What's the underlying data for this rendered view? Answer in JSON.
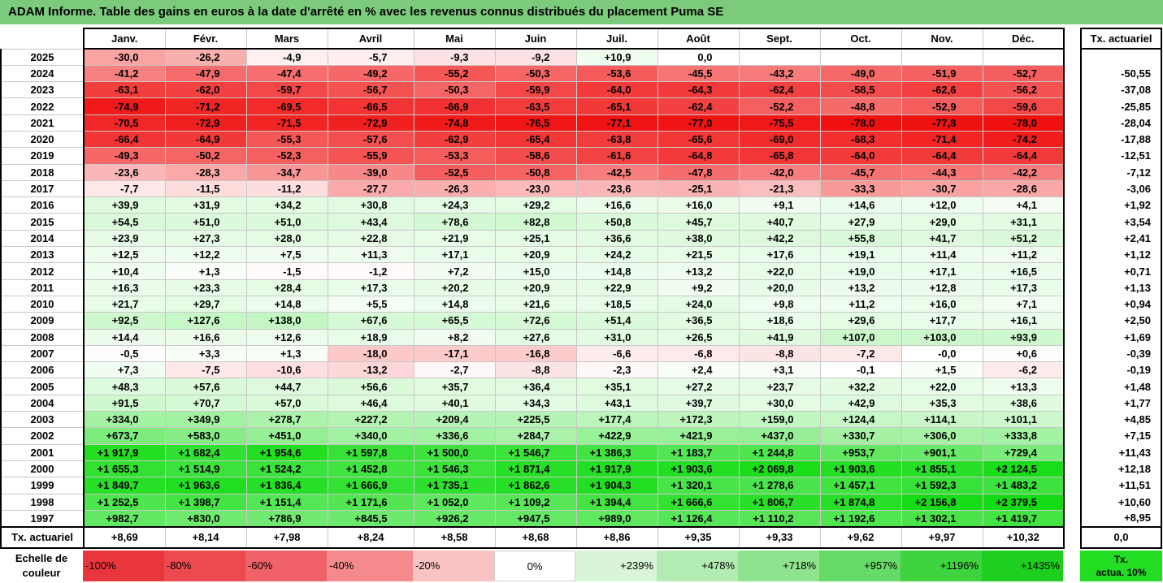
{
  "title": "ADAM Informe. Table des gains en euros à la date d'arrêté en % avec les revenus connus distribués du placement Puma SE",
  "months": [
    "Janv.",
    "Févr.",
    "Mars",
    "Avril",
    "Mai",
    "Juin",
    "Juil.",
    "Août",
    "Sept.",
    "Oct.",
    "Nov.",
    "Déc."
  ],
  "rate_header": "Tx. actuariel",
  "rows": [
    {
      "year": "2025",
      "values": [
        "-30,0",
        "-26,2",
        "-4,9",
        "-5,7",
        "-9,3",
        "-9,2",
        "+10,9",
        "0,0",
        "",
        "",
        "",
        ""
      ],
      "rate": ""
    },
    {
      "year": "2024",
      "values": [
        "-41,2",
        "-47,9",
        "-47,4",
        "-49,2",
        "-55,2",
        "-50,3",
        "-53,6",
        "-45,5",
        "-43,2",
        "-49,0",
        "-51,9",
        "-52,7"
      ],
      "rate": "-50,55"
    },
    {
      "year": "2023",
      "values": [
        "-63,1",
        "-62,0",
        "-59,7",
        "-56,7",
        "-50,3",
        "-59,9",
        "-64,0",
        "-64,3",
        "-62,4",
        "-58,5",
        "-62,6",
        "-56,2"
      ],
      "rate": "-37,08"
    },
    {
      "year": "2022",
      "values": [
        "-74,9",
        "-71,2",
        "-69,5",
        "-66,5",
        "-66,9",
        "-63,5",
        "-65,1",
        "-62,4",
        "-52,2",
        "-48,8",
        "-52,9",
        "-59,6"
      ],
      "rate": "-25,85"
    },
    {
      "year": "2021",
      "values": [
        "-70,5",
        "-72,9",
        "-71,5",
        "-72,9",
        "-74,8",
        "-76,5",
        "-77,1",
        "-77,0",
        "-75,5",
        "-78,0",
        "-77,8",
        "-78,0"
      ],
      "rate": "-28,04"
    },
    {
      "year": "2020",
      "values": [
        "-66,4",
        "-64,9",
        "-55,3",
        "-57,6",
        "-62,9",
        "-65,4",
        "-63,8",
        "-65,6",
        "-69,0",
        "-68,3",
        "-71,4",
        "-74,2"
      ],
      "rate": "-17,88"
    },
    {
      "year": "2019",
      "values": [
        "-49,3",
        "-50,2",
        "-52,3",
        "-55,9",
        "-53,3",
        "-58,6",
        "-61,6",
        "-64,8",
        "-65,8",
        "-64,0",
        "-64,4",
        "-64,4"
      ],
      "rate": "-12,51"
    },
    {
      "year": "2018",
      "values": [
        "-23,6",
        "-28,3",
        "-34,7",
        "-39,0",
        "-52,5",
        "-50,8",
        "-42,5",
        "-47,8",
        "-42,0",
        "-45,7",
        "-44,3",
        "-42,2"
      ],
      "rate": "-7,12"
    },
    {
      "year": "2017",
      "values": [
        "-7,7",
        "-11,5",
        "-11,2",
        "-27,7",
        "-26,3",
        "-23,0",
        "-23,6",
        "-25,1",
        "-21,3",
        "-33,3",
        "-30,7",
        "-28,6"
      ],
      "rate": "-3,06"
    },
    {
      "year": "2016",
      "values": [
        "+39,9",
        "+31,9",
        "+34,2",
        "+30,8",
        "+24,3",
        "+29,2",
        "+16,6",
        "+16,0",
        "+9,1",
        "+14,6",
        "+12,0",
        "+4,1"
      ],
      "rate": "+1,92"
    },
    {
      "year": "2015",
      "values": [
        "+54,5",
        "+51,0",
        "+51,0",
        "+43,4",
        "+78,6",
        "+82,8",
        "+50,8",
        "+45,7",
        "+40,7",
        "+27,9",
        "+29,0",
        "+31,1"
      ],
      "rate": "+3,54"
    },
    {
      "year": "2014",
      "values": [
        "+23,9",
        "+27,3",
        "+28,0",
        "+22,8",
        "+21,9",
        "+25,1",
        "+36,6",
        "+38,0",
        "+42,2",
        "+55,8",
        "+41,7",
        "+51,2"
      ],
      "rate": "+2,41"
    },
    {
      "year": "2013",
      "values": [
        "+12,5",
        "+12,2",
        "+7,5",
        "+11,3",
        "+17,1",
        "+20,9",
        "+24,2",
        "+21,5",
        "+17,6",
        "+19,1",
        "+11,4",
        "+11,2"
      ],
      "rate": "+1,12"
    },
    {
      "year": "2012",
      "values": [
        "+10,4",
        "+1,3",
        "-1,5",
        "-1,2",
        "+7,2",
        "+15,0",
        "+14,8",
        "+13,2",
        "+22,0",
        "+19,0",
        "+17,1",
        "+16,5"
      ],
      "rate": "+0,71"
    },
    {
      "year": "2011",
      "values": [
        "+16,3",
        "+23,3",
        "+28,4",
        "+17,3",
        "+20,2",
        "+20,9",
        "+22,9",
        "+9,2",
        "+20,0",
        "+13,2",
        "+12,8",
        "+17,3"
      ],
      "rate": "+1,13"
    },
    {
      "year": "2010",
      "values": [
        "+21,7",
        "+29,7",
        "+14,8",
        "+5,5",
        "+14,8",
        "+21,6",
        "+18,5",
        "+24,0",
        "+9,8",
        "+11,2",
        "+16,0",
        "+7,1"
      ],
      "rate": "+0,94"
    },
    {
      "year": "2009",
      "values": [
        "+92,5",
        "+127,6",
        "+138,0",
        "+67,6",
        "+65,5",
        "+72,6",
        "+51,4",
        "+36,5",
        "+18,6",
        "+29,6",
        "+17,7",
        "+16,1"
      ],
      "rate": "+2,50"
    },
    {
      "year": "2008",
      "values": [
        "+14,4",
        "+16,6",
        "+12,6",
        "+18,9",
        "+8,2",
        "+27,6",
        "+31,0",
        "+26,5",
        "+41,9",
        "+107,0",
        "+103,0",
        "+93,9"
      ],
      "rate": "+1,69"
    },
    {
      "year": "2007",
      "values": [
        "-0,5",
        "+3,3",
        "+1,3",
        "-18,0",
        "-17,1",
        "-16,8",
        "-6,6",
        "-6,8",
        "-8,8",
        "-7,2",
        "-0,0",
        "+0,6"
      ],
      "rate": "-0,39"
    },
    {
      "year": "2006",
      "values": [
        "+7,3",
        "-7,5",
        "-10,6",
        "-13,2",
        "-2,7",
        "-8,8",
        "-2,3",
        "+2,4",
        "+3,1",
        "-0,1",
        "+1,5",
        "-6,2"
      ],
      "rate": "-0,19"
    },
    {
      "year": "2005",
      "values": [
        "+48,3",
        "+57,6",
        "+44,7",
        "+56,6",
        "+35,7",
        "+36,4",
        "+35,1",
        "+27,2",
        "+23,7",
        "+32,2",
        "+22,0",
        "+13,3"
      ],
      "rate": "+1,48"
    },
    {
      "year": "2004",
      "values": [
        "+91,5",
        "+70,7",
        "+57,0",
        "+46,4",
        "+40,1",
        "+34,3",
        "+43,1",
        "+39,7",
        "+30,0",
        "+42,9",
        "+35,3",
        "+38,6"
      ],
      "rate": "+1,77"
    },
    {
      "year": "2003",
      "values": [
        "+334,0",
        "+349,9",
        "+278,7",
        "+227,2",
        "+209,4",
        "+225,5",
        "+177,4",
        "+172,3",
        "+159,0",
        "+124,4",
        "+114,1",
        "+101,1"
      ],
      "rate": "+4,85"
    },
    {
      "year": "2002",
      "values": [
        "+673,7",
        "+583,0",
        "+451,0",
        "+340,0",
        "+336,6",
        "+284,7",
        "+422,9",
        "+421,9",
        "+437,0",
        "+330,7",
        "+306,0",
        "+333,8"
      ],
      "rate": "+7,15"
    },
    {
      "year": "2001",
      "values": [
        "+1 917,9",
        "+1 682,4",
        "+1 954,6",
        "+1 597,8",
        "+1 500,0",
        "+1 546,7",
        "+1 386,3",
        "+1 183,7",
        "+1 244,8",
        "+953,7",
        "+901,1",
        "+729,4"
      ],
      "rate": "+11,43"
    },
    {
      "year": "2000",
      "values": [
        "+1 655,3",
        "+1 514,9",
        "+1 524,2",
        "+1 452,8",
        "+1 546,3",
        "+1 871,4",
        "+1 917,9",
        "+1 903,6",
        "+2 069,8",
        "+1 903,6",
        "+1 855,1",
        "+2 124,5"
      ],
      "rate": "+12,18"
    },
    {
      "year": "1999",
      "values": [
        "+1 849,7",
        "+1 963,6",
        "+1 836,4",
        "+1 666,9",
        "+1 735,1",
        "+1 862,6",
        "+1 904,3",
        "+1 320,1",
        "+1 278,6",
        "+1 457,1",
        "+1 592,3",
        "+1 483,2"
      ],
      "rate": "+11,51"
    },
    {
      "year": "1998",
      "values": [
        "+1 252,5",
        "+1 398,7",
        "+1 151,4",
        "+1 171,6",
        "+1 052,0",
        "+1 109,2",
        "+1 394,4",
        "+1 666,6",
        "+1 806,7",
        "+1 874,8",
        "+2 156,8",
        "+2 379,5"
      ],
      "rate": "+10,60"
    },
    {
      "year": "1997",
      "values": [
        "+982,7",
        "+830,0",
        "+786,9",
        "+845,5",
        "+926,2",
        "+947,5",
        "+989,0",
        "+1 126,4",
        "+1 110,2",
        "+1 192,6",
        "+1 302,1",
        "+1 419,7"
      ],
      "rate": "+8,95"
    }
  ],
  "footer": {
    "label": "Tx. actuariel",
    "values": [
      "+8,69",
      "+8,14",
      "+7,98",
      "+8,24",
      "+8,58",
      "+8,68",
      "+8,86",
      "+9,35",
      "+9,33",
      "+9,62",
      "+9,97",
      "+10,32"
    ],
    "rate": "0,0"
  },
  "legend": {
    "label_line1": "Echelle de",
    "label_line2": "couleur",
    "swatches": [
      {
        "label": "-100%",
        "color": "#e8363c",
        "kind": "neg"
      },
      {
        "label": "-80%",
        "color": "#ec4a4f",
        "kind": "neg"
      },
      {
        "label": "-60%",
        "color": "#f06267",
        "kind": "neg"
      },
      {
        "label": "-40%",
        "color": "#f48a8d",
        "kind": "neg"
      },
      {
        "label": "-20%",
        "color": "#f9c3c4",
        "kind": "neg"
      },
      {
        "label": "0%",
        "color": "#ffffff",
        "kind": "zero"
      },
      {
        "label": "+239%",
        "color": "#d8f5d8",
        "kind": "pos"
      },
      {
        "label": "+478%",
        "color": "#b3ecb3",
        "kind": "pos"
      },
      {
        "label": "+718%",
        "color": "#8ee38e",
        "kind": "pos"
      },
      {
        "label": "+957%",
        "color": "#66da66",
        "kind": "pos"
      },
      {
        "label": "+1196%",
        "color": "#3fd33f",
        "kind": "pos"
      },
      {
        "label": "+1435%",
        "color": "#1fcf1f",
        "kind": "pos"
      }
    ],
    "rate_line1": "Tx.",
    "rate_line2": "actua. 10%"
  }
}
